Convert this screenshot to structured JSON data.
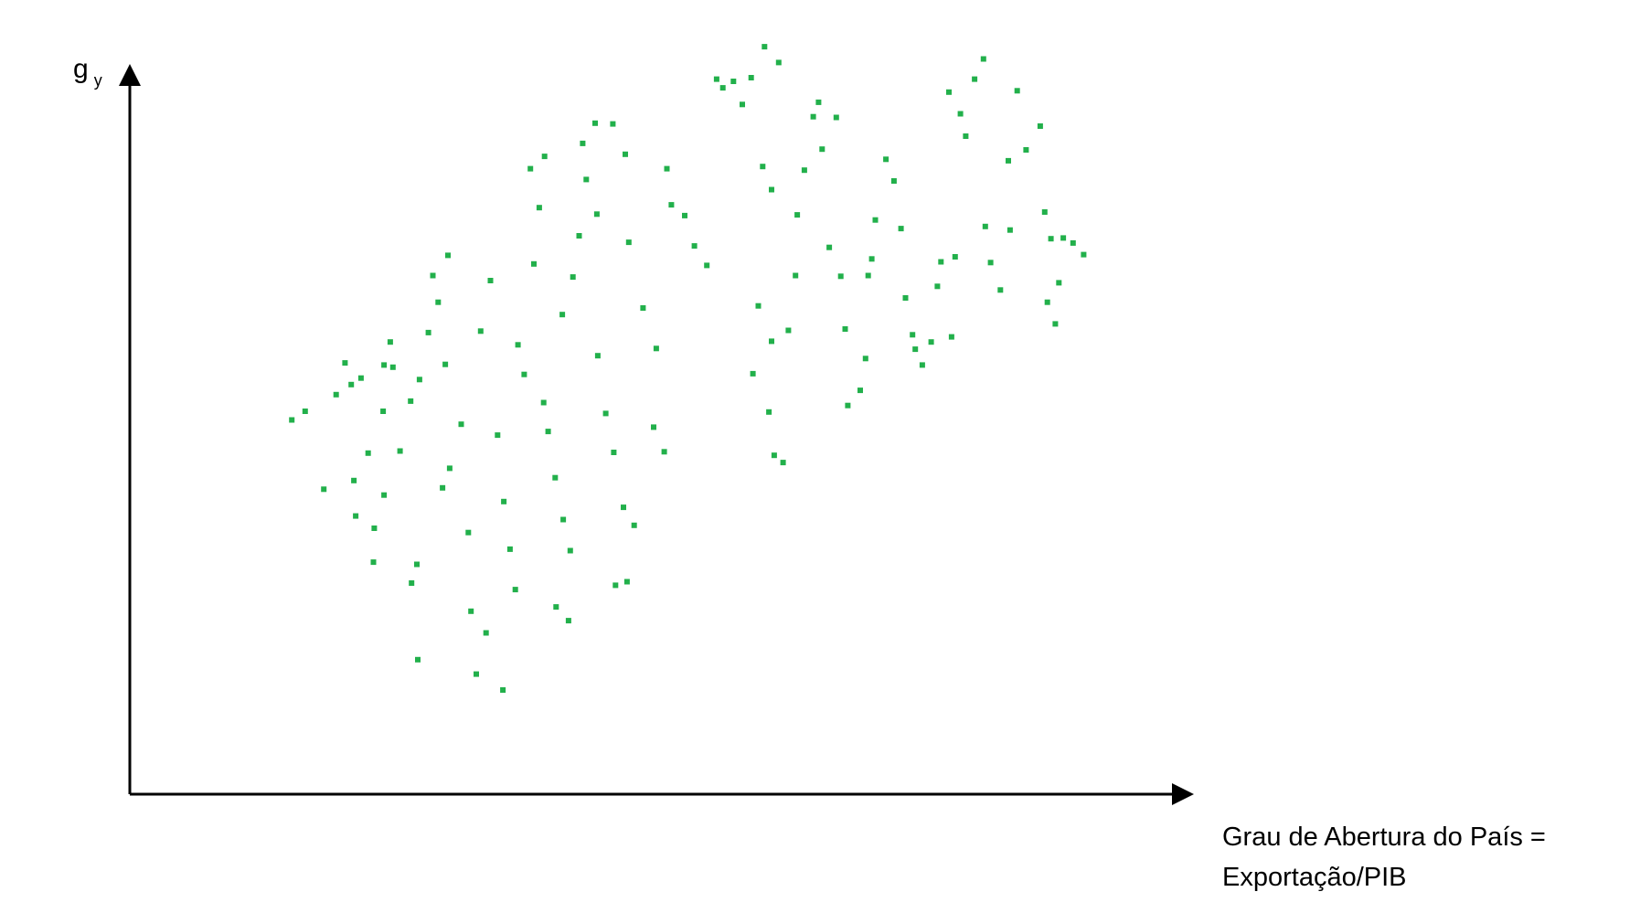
{
  "chart_data": {
    "type": "scatter",
    "title": "",
    "ylabel": {
      "main": "g",
      "subscript": "y"
    },
    "xlabel_lines": [
      "Grau de Abertura do País =",
      "Exportação/PIB"
    ],
    "xlim": [
      0,
      1
    ],
    "ylim": [
      0,
      1
    ],
    "grid": false,
    "legend": "none",
    "point_color": "#22b04b",
    "axis_color": "#000000",
    "points": [
      {
        "x": 0.092,
        "y": 0.469
      },
      {
        "x": 0.107,
        "y": 0.481
      },
      {
        "x": 0.128,
        "y": 0.373
      },
      {
        "x": 0.152,
        "y": 0.548
      },
      {
        "x": 0.142,
        "y": 0.504
      },
      {
        "x": 0.159,
        "y": 0.518
      },
      {
        "x": 0.17,
        "y": 0.527
      },
      {
        "x": 0.162,
        "y": 0.385
      },
      {
        "x": 0.164,
        "y": 0.336
      },
      {
        "x": 0.178,
        "y": 0.423
      },
      {
        "x": 0.185,
        "y": 0.319
      },
      {
        "x": 0.195,
        "y": 0.481
      },
      {
        "x": 0.196,
        "y": 0.545
      },
      {
        "x": 0.206,
        "y": 0.542
      },
      {
        "x": 0.203,
        "y": 0.577
      },
      {
        "x": 0.184,
        "y": 0.272
      },
      {
        "x": 0.196,
        "y": 0.365
      },
      {
        "x": 0.214,
        "y": 0.426
      },
      {
        "x": 0.226,
        "y": 0.495
      },
      {
        "x": 0.236,
        "y": 0.525
      },
      {
        "x": 0.233,
        "y": 0.269
      },
      {
        "x": 0.227,
        "y": 0.243
      },
      {
        "x": 0.234,
        "y": 0.137
      },
      {
        "x": 0.246,
        "y": 0.59
      },
      {
        "x": 0.251,
        "y": 0.669
      },
      {
        "x": 0.262,
        "y": 0.375
      },
      {
        "x": 0.27,
        "y": 0.402
      },
      {
        "x": 0.265,
        "y": 0.546
      },
      {
        "x": 0.257,
        "y": 0.632
      },
      {
        "x": 0.268,
        "y": 0.697
      },
      {
        "x": 0.283,
        "y": 0.463
      },
      {
        "x": 0.291,
        "y": 0.313
      },
      {
        "x": 0.294,
        "y": 0.204
      },
      {
        "x": 0.3,
        "y": 0.117
      },
      {
        "x": 0.311,
        "y": 0.174
      },
      {
        "x": 0.305,
        "y": 0.592
      },
      {
        "x": 0.316,
        "y": 0.662
      },
      {
        "x": 0.324,
        "y": 0.448
      },
      {
        "x": 0.331,
        "y": 0.356
      },
      {
        "x": 0.338,
        "y": 0.29
      },
      {
        "x": 0.344,
        "y": 0.234
      },
      {
        "x": 0.33,
        "y": 0.095
      },
      {
        "x": 0.347,
        "y": 0.573
      },
      {
        "x": 0.354,
        "y": 0.532
      },
      {
        "x": 0.365,
        "y": 0.685
      },
      {
        "x": 0.371,
        "y": 0.763
      },
      {
        "x": 0.361,
        "y": 0.817
      },
      {
        "x": 0.377,
        "y": 0.834
      },
      {
        "x": 0.376,
        "y": 0.493
      },
      {
        "x": 0.381,
        "y": 0.453
      },
      {
        "x": 0.389,
        "y": 0.389
      },
      {
        "x": 0.398,
        "y": 0.331
      },
      {
        "x": 0.406,
        "y": 0.288
      },
      {
        "x": 0.404,
        "y": 0.191
      },
      {
        "x": 0.39,
        "y": 0.21
      },
      {
        "x": 0.397,
        "y": 0.615
      },
      {
        "x": 0.409,
        "y": 0.667
      },
      {
        "x": 0.416,
        "y": 0.724
      },
      {
        "x": 0.424,
        "y": 0.802
      },
      {
        "x": 0.434,
        "y": 0.88
      },
      {
        "x": 0.42,
        "y": 0.852
      },
      {
        "x": 0.436,
        "y": 0.754
      },
      {
        "x": 0.437,
        "y": 0.558
      },
      {
        "x": 0.446,
        "y": 0.478
      },
      {
        "x": 0.455,
        "y": 0.424
      },
      {
        "x": 0.466,
        "y": 0.348
      },
      {
        "x": 0.478,
        "y": 0.323
      },
      {
        "x": 0.47,
        "y": 0.245
      },
      {
        "x": 0.457,
        "y": 0.24
      },
      {
        "x": 0.454,
        "y": 0.879
      },
      {
        "x": 0.468,
        "y": 0.837
      },
      {
        "x": 0.472,
        "y": 0.715
      },
      {
        "x": 0.488,
        "y": 0.624
      },
      {
        "x": 0.503,
        "y": 0.568
      },
      {
        "x": 0.5,
        "y": 0.459
      },
      {
        "x": 0.512,
        "y": 0.425
      },
      {
        "x": 0.515,
        "y": 0.817
      },
      {
        "x": 0.52,
        "y": 0.767
      },
      {
        "x": 0.535,
        "y": 0.752
      },
      {
        "x": 0.546,
        "y": 0.71
      },
      {
        "x": 0.56,
        "y": 0.683
      },
      {
        "x": 0.571,
        "y": 0.941
      },
      {
        "x": 0.578,
        "y": 0.929
      },
      {
        "x": 0.59,
        "y": 0.938
      },
      {
        "x": 0.6,
        "y": 0.906
      },
      {
        "x": 0.61,
        "y": 0.943
      },
      {
        "x": 0.625,
        "y": 0.986
      },
      {
        "x": 0.641,
        "y": 0.964
      },
      {
        "x": 0.623,
        "y": 0.82
      },
      {
        "x": 0.633,
        "y": 0.788
      },
      {
        "x": 0.618,
        "y": 0.627
      },
      {
        "x": 0.612,
        "y": 0.533
      },
      {
        "x": 0.633,
        "y": 0.578
      },
      {
        "x": 0.63,
        "y": 0.48
      },
      {
        "x": 0.636,
        "y": 0.42
      },
      {
        "x": 0.646,
        "y": 0.41
      },
      {
        "x": 0.652,
        "y": 0.593
      },
      {
        "x": 0.66,
        "y": 0.669
      },
      {
        "x": 0.662,
        "y": 0.753
      },
      {
        "x": 0.67,
        "y": 0.815
      },
      {
        "x": 0.68,
        "y": 0.889
      },
      {
        "x": 0.686,
        "y": 0.909
      },
      {
        "x": 0.69,
        "y": 0.844
      },
      {
        "x": 0.706,
        "y": 0.888
      },
      {
        "x": 0.698,
        "y": 0.708
      },
      {
        "x": 0.711,
        "y": 0.668
      },
      {
        "x": 0.716,
        "y": 0.595
      },
      {
        "x": 0.719,
        "y": 0.489
      },
      {
        "x": 0.733,
        "y": 0.51
      },
      {
        "x": 0.739,
        "y": 0.554
      },
      {
        "x": 0.742,
        "y": 0.669
      },
      {
        "x": 0.746,
        "y": 0.692
      },
      {
        "x": 0.75,
        "y": 0.746
      },
      {
        "x": 0.762,
        "y": 0.83
      },
      {
        "x": 0.771,
        "y": 0.8
      },
      {
        "x": 0.779,
        "y": 0.734
      },
      {
        "x": 0.784,
        "y": 0.638
      },
      {
        "x": 0.792,
        "y": 0.587
      },
      {
        "x": 0.795,
        "y": 0.567
      },
      {
        "x": 0.803,
        "y": 0.545
      },
      {
        "x": 0.813,
        "y": 0.577
      },
      {
        "x": 0.82,
        "y": 0.654
      },
      {
        "x": 0.824,
        "y": 0.688
      },
      {
        "x": 0.836,
        "y": 0.584
      },
      {
        "x": 0.84,
        "y": 0.695
      },
      {
        "x": 0.833,
        "y": 0.923
      },
      {
        "x": 0.846,
        "y": 0.893
      },
      {
        "x": 0.852,
        "y": 0.862
      },
      {
        "x": 0.862,
        "y": 0.941
      },
      {
        "x": 0.872,
        "y": 0.969
      },
      {
        "x": 0.874,
        "y": 0.737
      },
      {
        "x": 0.88,
        "y": 0.687
      },
      {
        "x": 0.891,
        "y": 0.649
      },
      {
        "x": 0.902,
        "y": 0.732
      },
      {
        "x": 0.9,
        "y": 0.828
      },
      {
        "x": 0.91,
        "y": 0.925
      },
      {
        "x": 0.92,
        "y": 0.843
      },
      {
        "x": 0.936,
        "y": 0.876
      },
      {
        "x": 0.941,
        "y": 0.757
      },
      {
        "x": 0.948,
        "y": 0.72
      },
      {
        "x": 0.944,
        "y": 0.632
      },
      {
        "x": 0.953,
        "y": 0.602
      },
      {
        "x": 0.957,
        "y": 0.659
      },
      {
        "x": 0.962,
        "y": 0.721
      },
      {
        "x": 0.973,
        "y": 0.714
      },
      {
        "x": 0.985,
        "y": 0.698
      }
    ]
  }
}
